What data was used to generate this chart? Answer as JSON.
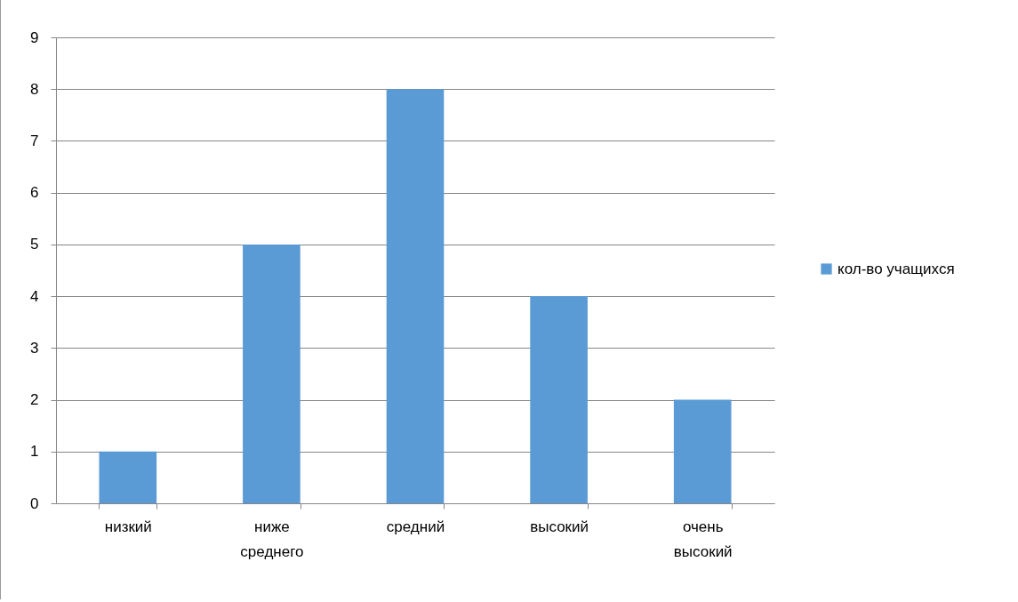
{
  "chart_data": {
    "type": "bar",
    "categories": [
      "низкий",
      "ниже среднего",
      "средний",
      "высокий",
      "очень высокий"
    ],
    "series": [
      {
        "name": "кол-во учащихся",
        "color": "#5b9bd5",
        "values": [
          1,
          5,
          8,
          4,
          2
        ]
      }
    ],
    "ylim": [
      0,
      9
    ],
    "yticks": [
      0,
      1,
      2,
      3,
      4,
      5,
      6,
      7,
      8,
      9
    ],
    "grid": "y",
    "legend": "right"
  }
}
